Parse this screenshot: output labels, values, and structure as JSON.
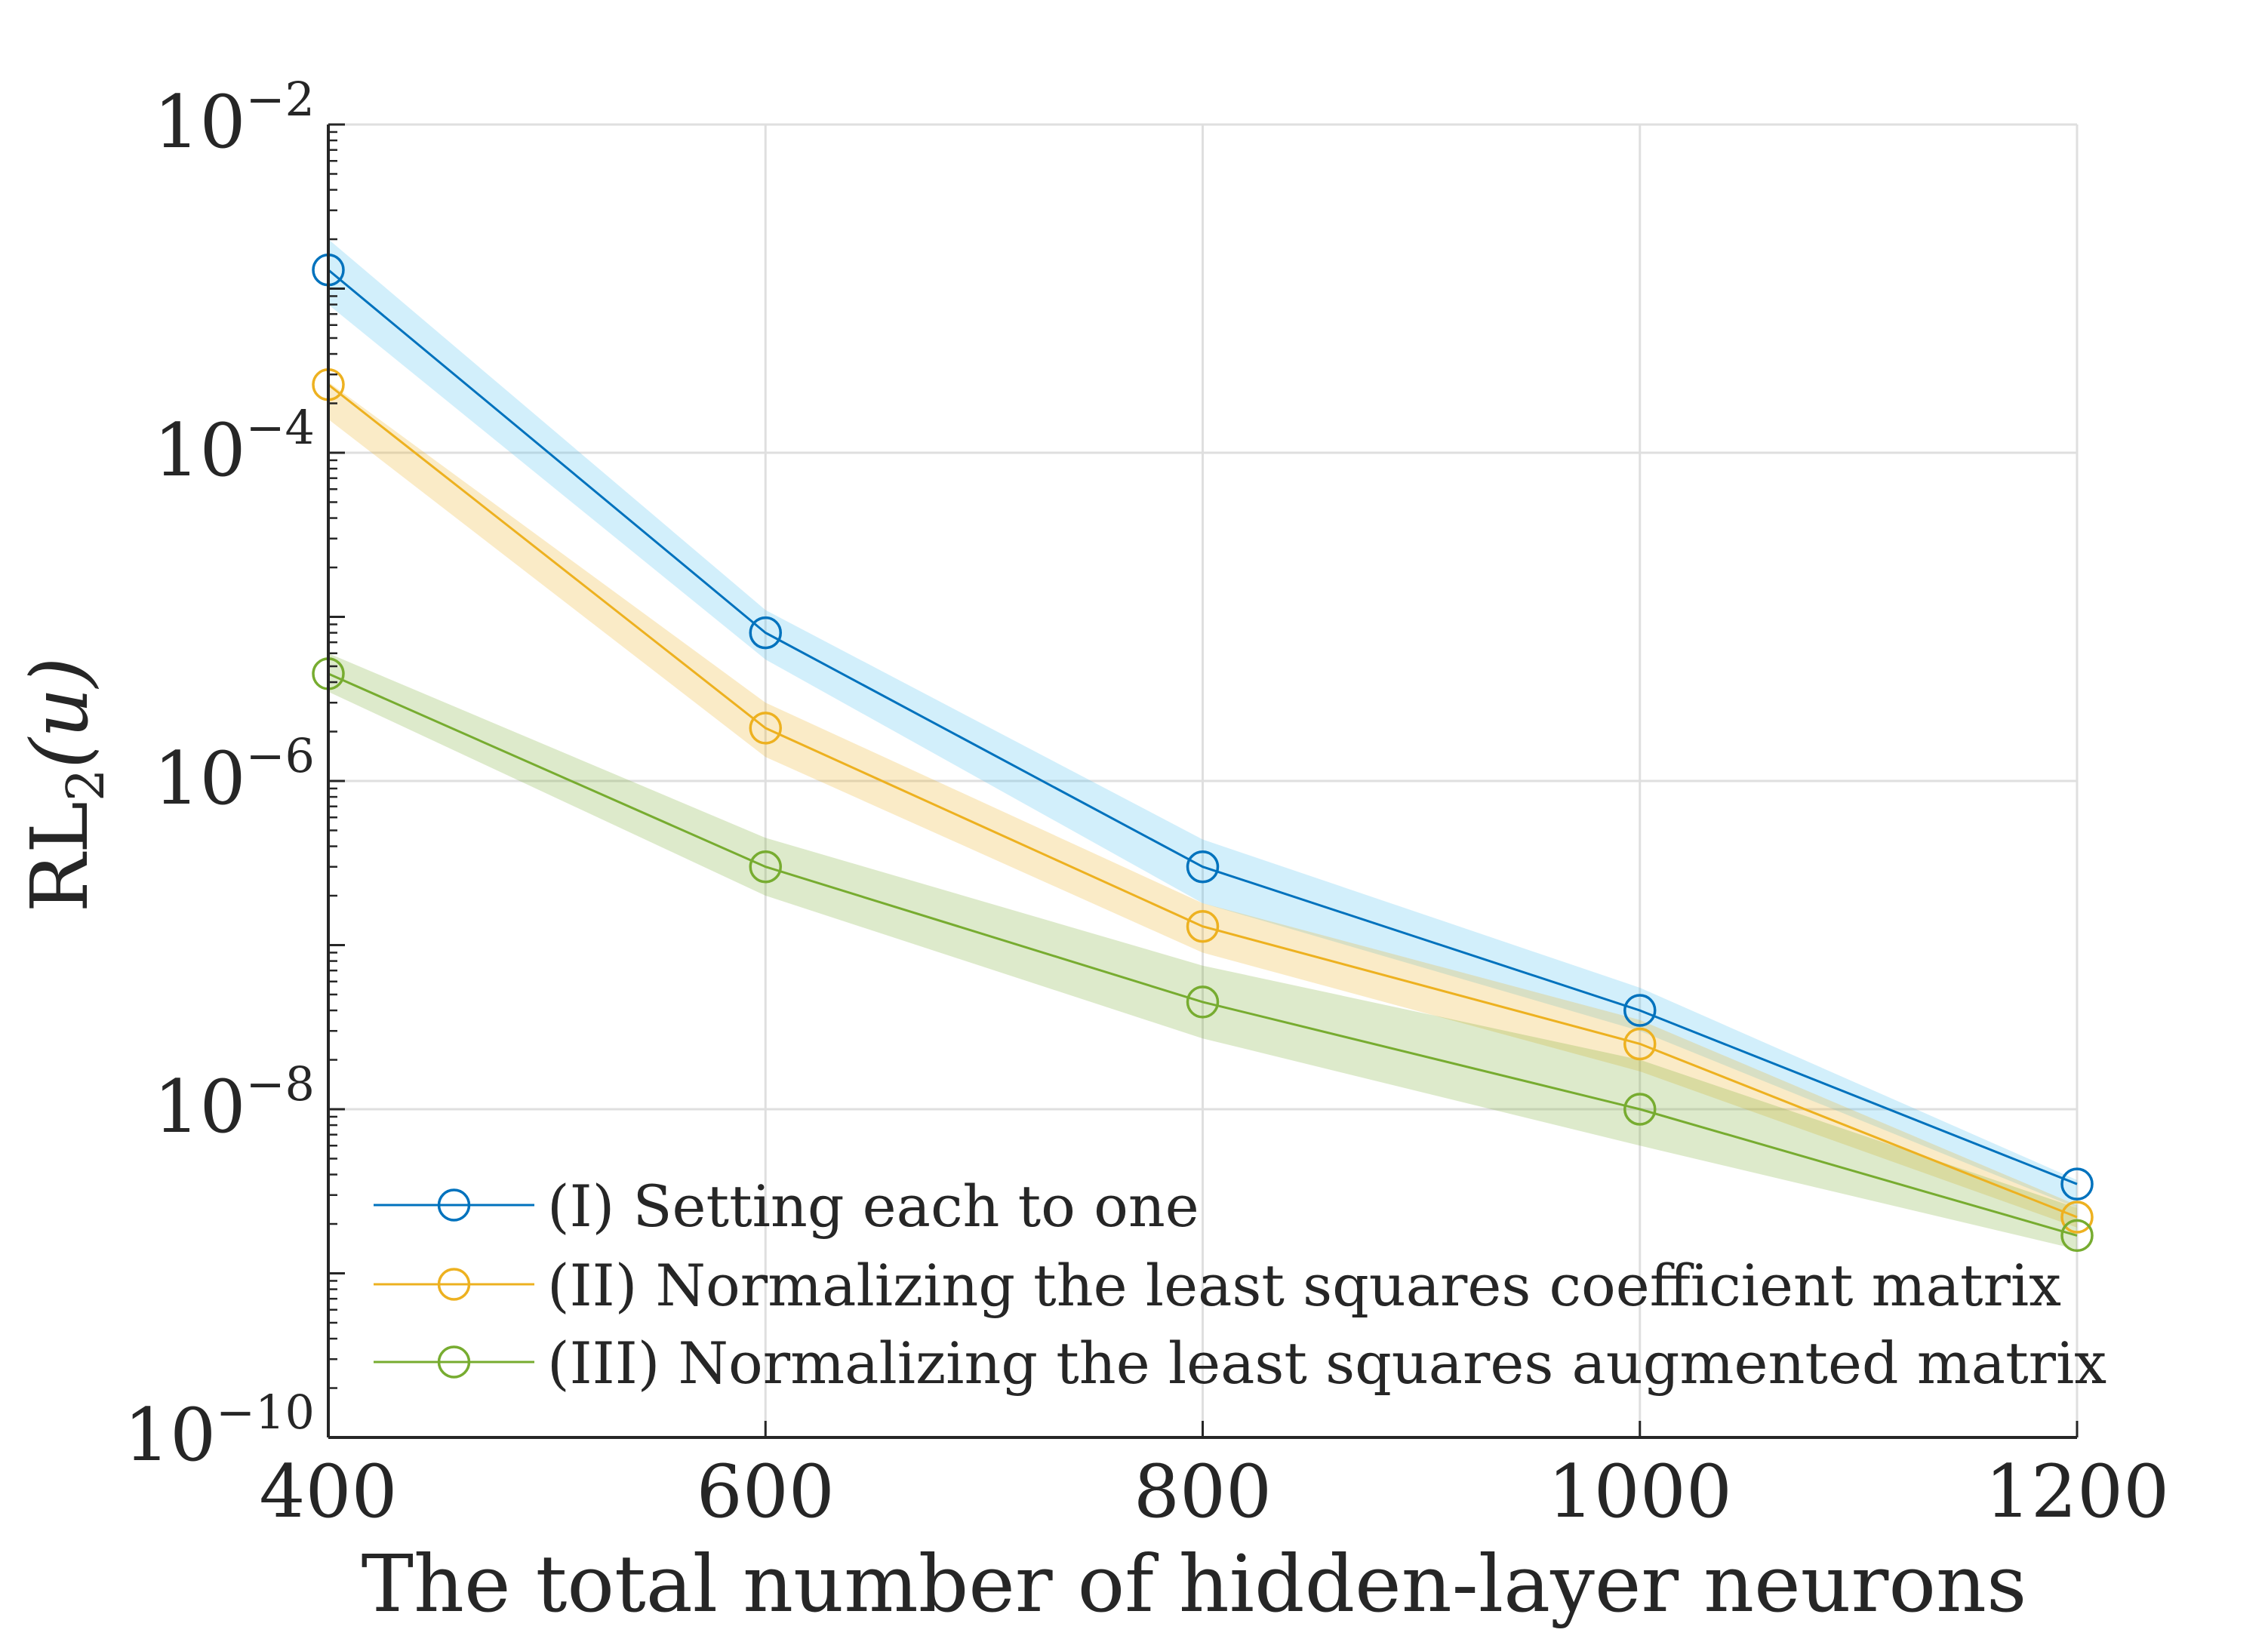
{
  "chart_data": {
    "type": "line",
    "x": [
      400,
      600,
      800,
      1000,
      1200
    ],
    "xlabel": "The total number of hidden-layer neurons",
    "ylabel_main": "RL",
    "ylabel_sub": "2",
    "ylabel_arg": "(u)",
    "yscale": "log",
    "xlim": [
      400,
      1200
    ],
    "ylim": [
      1e-10,
      0.01
    ],
    "grid": true,
    "legend_position": "bottom-left",
    "x_ticks": [
      {
        "value": 400,
        "label": "400"
      },
      {
        "value": 600,
        "label": "600"
      },
      {
        "value": 800,
        "label": "800"
      },
      {
        "value": 1000,
        "label": "1000"
      },
      {
        "value": 1200,
        "label": "1200"
      }
    ],
    "y_ticks": [
      {
        "exp": -2,
        "base": "10",
        "sup": "−2"
      },
      {
        "exp": -4,
        "base": "10",
        "sup": "−4"
      },
      {
        "exp": -6,
        "base": "10",
        "sup": "−6"
      },
      {
        "exp": -8,
        "base": "10",
        "sup": "−8"
      },
      {
        "exp": -10,
        "base": "10",
        "sup": "−10"
      }
    ],
    "series": [
      {
        "name": "(I) Setting each to one",
        "color": "#0072BD",
        "band_color": "#4DBEEE",
        "values": [
          0.0013,
          8e-06,
          3e-07,
          4e-08,
          3.5e-09
        ],
        "upper": [
          0.002,
          1.1e-05,
          4.4e-07,
          5.5e-08,
          3.7e-09
        ],
        "lower": [
          0.0008,
          5.5e-06,
          1.8e-07,
          3e-08,
          2.5e-09
        ]
      },
      {
        "name": "(II) Normalizing the least squares coefficient matrix",
        "color": "#EDB120",
        "band_color": "#EDB120",
        "values": [
          0.00026,
          2.1e-06,
          1.3e-07,
          2.5e-08,
          2.2e-09
        ],
        "upper": [
          0.00027,
          3e-06,
          1.8e-07,
          3.5e-08,
          2.6e-09
        ],
        "lower": [
          0.00016,
          1.4e-06,
          9e-08,
          1.7e-08,
          1.9e-09
        ]
      },
      {
        "name": "(III) Normalizing the least squares augmented matrix",
        "color": "#77AC30",
        "band_color": "#77AC30",
        "values": [
          4.5e-06,
          3e-07,
          4.5e-08,
          1e-08,
          1.7e-09
        ],
        "upper": [
          6e-06,
          4.5e-07,
          7.5e-08,
          2e-08,
          2.5e-09
        ],
        "lower": [
          3.5e-06,
          2e-07,
          2.7e-08,
          6e-09,
          1.4e-09
        ]
      }
    ]
  }
}
